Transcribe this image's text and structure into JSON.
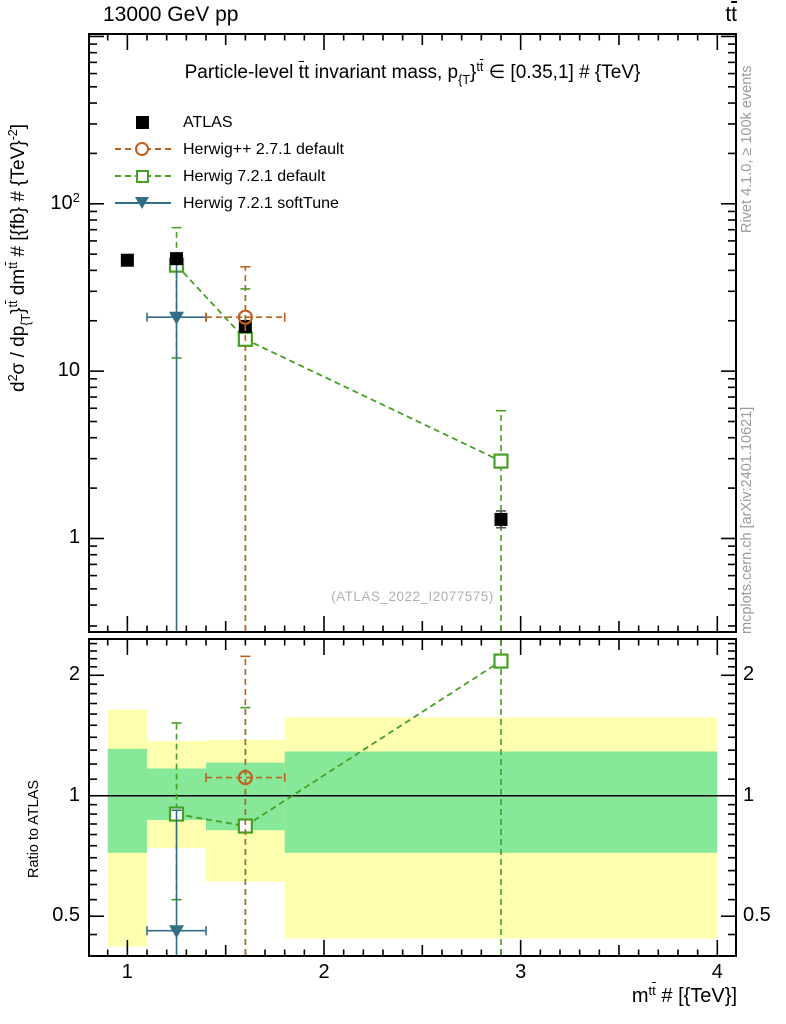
{
  "header": {
    "left": "13000 GeV pp",
    "right": [
      {
        "t": "t"
      },
      {
        "t": "t",
        "s": "bar"
      }
    ]
  },
  "title": [
    {
      "t": "Particle-level "
    },
    {
      "t": "t",
      "s": "bar"
    },
    {
      "t": "t"
    },
    {
      "t": " invariant mass, p"
    },
    {
      "t": "{T",
      "s": "sub"
    },
    {
      "t": "}"
    },
    {
      "t": "t",
      "s": "sup"
    },
    {
      "t": "t",
      "s": "sup bar"
    },
    {
      "t": " ∈ [0.35,1] # {TeV}"
    }
  ],
  "axes": {
    "y_title": [
      {
        "t": "d"
      },
      {
        "t": "2",
        "s": "sup"
      },
      {
        "t": "σ / dp"
      },
      {
        "t": "{T",
        "s": "sub"
      },
      {
        "t": "}"
      },
      {
        "t": "t",
        "s": "sup"
      },
      {
        "t": "t",
        "s": "sup bar"
      },
      {
        "t": " dm"
      },
      {
        "t": "t",
        "s": "sup"
      },
      {
        "t": "t",
        "s": "sup bar"
      },
      {
        "t": " # [{fb} # {TeV}"
      },
      {
        "t": "-2",
        "s": "sup"
      },
      {
        "t": "]"
      }
    ],
    "x_title": [
      {
        "t": "m"
      },
      {
        "t": "t",
        "s": "sup"
      },
      {
        "t": "t",
        "s": "sup bar"
      },
      {
        "t": " # [{TeV}]"
      }
    ],
    "ratio_y_title": "Ratio to ATLAS",
    "x_ticks": [
      {
        "v": 1,
        "label": "1"
      },
      {
        "v": 2,
        "label": "2"
      },
      {
        "v": 3,
        "label": "3"
      },
      {
        "v": 4,
        "label": "4"
      }
    ],
    "main_y_ticks": [
      {
        "v": 1,
        "label": [
          {
            "t": "1"
          }
        ]
      },
      {
        "v": 10,
        "label": [
          {
            "t": "10"
          }
        ]
      },
      {
        "v": 100,
        "label": [
          {
            "t": "10"
          },
          {
            "t": "2",
            "s": "sup"
          }
        ]
      }
    ],
    "ratio_y_ticks": [
      {
        "v": 0.5,
        "label": "0.5"
      },
      {
        "v": 1,
        "label": "1"
      },
      {
        "v": 2,
        "label": "2"
      }
    ]
  },
  "legend": [
    {
      "label": "ATLAS",
      "marker": "filled-square",
      "color": "#000000",
      "line": "none"
    },
    {
      "label": "Herwig++ 2.7.1 default",
      "marker": "open-circle",
      "color": "#c06020",
      "line": "dashed"
    },
    {
      "label": "Herwig 7.2.1 default",
      "marker": "open-square",
      "color": "#46a024",
      "line": "dashed"
    },
    {
      "label": "Herwig 7.2.1 softTune",
      "marker": "triangle-down",
      "color": "#336e87",
      "line": "solid"
    }
  ],
  "captions": {
    "right_top": "Rivet 4.1.0, ≥ 100k events",
    "right_bottom": "mcplots.cern.ch [arXiv:2401.10621]",
    "watermark": "(ATLAS_2022_I2077575)"
  },
  "colors": {
    "atlas": "#000000",
    "herwigpp": "#c06020",
    "herwig7_default": "#46a024",
    "herwig7_softtune": "#336e87",
    "band_outer": "#ffffb0",
    "band_inner": "#88e899",
    "atlas_err": "#555555",
    "caption_gray": "#9a9a9a"
  },
  "chart_data": [
    {
      "type": "scatter",
      "panel": "main",
      "title": "Particle-level ttbar invariant mass, pT{ttbar} in [0.35,1] TeV",
      "xlabel": "m{ttbar} [TeV]",
      "ylabel": "d2sigma / dpT{ttbar} dm{ttbar} [fb/TeV^2]",
      "xlim": [
        0.81,
        4.09
      ],
      "ylim": [
        0.28,
        1020
      ],
      "yscale": "log",
      "series": [
        {
          "name": "ATLAS",
          "marker": "filled-square",
          "color": "#000000",
          "errcolor": "#555555",
          "line": "none",
          "z": 3,
          "x": [
            1.0,
            1.25,
            1.6,
            2.9
          ],
          "y": [
            46,
            47,
            18.5,
            1.3
          ],
          "yerr_lo": [
            43,
            44,
            17.3,
            1.16
          ],
          "yerr_hi": [
            49,
            50,
            19.8,
            1.46
          ]
        },
        {
          "name": "Herwig++ 2.7.1 default",
          "marker": "open-circle",
          "color": "#c06020",
          "line": "dashed",
          "z": 4,
          "x": [
            1.6
          ],
          "y": [
            21
          ],
          "xerr_lo": [
            1.4
          ],
          "xerr_hi": [
            1.8
          ],
          "yerr_lo": [
            0.28
          ],
          "yerr_hi": [
            42
          ]
        },
        {
          "name": "Herwig 7.2.1 default",
          "marker": "open-square",
          "color": "#46a024",
          "line": "dashed",
          "connect": true,
          "z": 1,
          "x": [
            1.25,
            1.6,
            2.9
          ],
          "y": [
            43,
            15.5,
            2.9
          ],
          "yerr_lo": [
            12,
            0.28,
            0.28
          ],
          "yerr_hi": [
            72,
            31,
            5.8
          ]
        },
        {
          "name": "Herwig 7.2.1 softTune",
          "marker": "triangle-down",
          "color": "#336e87",
          "line": "solid",
          "z": 2,
          "x": [
            1.25
          ],
          "y": [
            21
          ],
          "xerr_lo": [
            1.1
          ],
          "xerr_hi": [
            1.4
          ],
          "yerr_lo": [
            0.28
          ],
          "yerr_hi": [
            45
          ]
        }
      ]
    },
    {
      "type": "ratio",
      "panel": "ratio",
      "ylabel": "Ratio to ATLAS",
      "xlim": [
        0.81,
        4.09
      ],
      "ylim": [
        0.4,
        2.45
      ],
      "yscale": "log",
      "ref_line": 1,
      "bands": [
        {
          "x0": 0.9,
          "x1": 1.1,
          "outer": [
            0.42,
            1.64
          ],
          "inner": [
            0.72,
            1.31
          ]
        },
        {
          "x0": 1.1,
          "x1": 1.4,
          "outer": [
            0.74,
            1.37
          ],
          "inner": [
            0.87,
            1.17
          ]
        },
        {
          "x0": 1.4,
          "x1": 1.8,
          "outer": [
            0.61,
            1.38
          ],
          "inner": [
            0.82,
            1.21
          ]
        },
        {
          "x0": 1.8,
          "x1": 4.0,
          "outer": [
            0.44,
            1.57
          ],
          "inner": [
            0.72,
            1.29
          ]
        }
      ],
      "series": [
        {
          "name": "Herwig++ 2.7.1 default",
          "marker": "open-circle",
          "color": "#c06020",
          "line": "dashed",
          "z": 3,
          "x": [
            1.6
          ],
          "y": [
            1.11
          ],
          "xerr_lo": [
            1.4
          ],
          "xerr_hi": [
            1.8
          ],
          "yerr_lo": [
            0.4
          ],
          "yerr_hi": [
            2.23
          ]
        },
        {
          "name": "Herwig 7.2.1 default",
          "marker": "open-square",
          "color": "#46a024",
          "line": "dashed",
          "connect": true,
          "z": 1,
          "x": [
            1.25,
            1.6,
            2.9
          ],
          "y": [
            0.9,
            0.84,
            2.17
          ],
          "yerr_lo": [
            0.55,
            0.4,
            0.4
          ],
          "yerr_hi": [
            1.52,
            1.66,
            2.45
          ]
        },
        {
          "name": "Herwig 7.2.1 softTune",
          "marker": "triangle-down",
          "color": "#336e87",
          "line": "solid",
          "z": 2,
          "x": [
            1.25
          ],
          "y": [
            0.46
          ],
          "xerr_lo": [
            1.1
          ],
          "xerr_hi": [
            1.4
          ],
          "yerr_lo": [
            0.4
          ],
          "yerr_hi": [
            0.92
          ]
        }
      ]
    }
  ]
}
